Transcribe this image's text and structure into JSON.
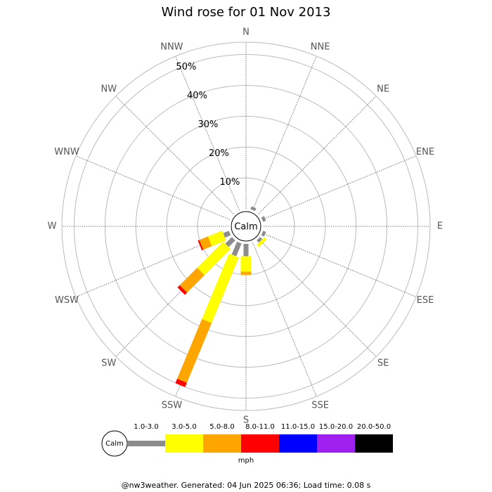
{
  "chart_data": {
    "type": "wind-rose",
    "title": "Wind rose for 01 Nov 2013",
    "directions": [
      "N",
      "NNE",
      "NE",
      "ENE",
      "E",
      "ESE",
      "SE",
      "SSE",
      "S",
      "SSW",
      "SW",
      "WSW",
      "W",
      "WNW",
      "NW",
      "NNW"
    ],
    "center_label": "Calm",
    "rlim": [
      0,
      54
    ],
    "rticks": [
      {
        "value": 10,
        "label": "10%"
      },
      {
        "value": 20,
        "label": "20%"
      },
      {
        "value": 30,
        "label": "30%"
      },
      {
        "value": 40,
        "label": "40%"
      },
      {
        "value": 50,
        "label": "50%"
      }
    ],
    "series": [
      {
        "name": "1.0-3.0",
        "color": "#8c8c8c",
        "values": [
          0,
          1,
          0,
          1,
          0,
          1,
          1,
          0,
          4,
          4.5,
          3,
          2,
          0,
          0,
          0,
          0
        ]
      },
      {
        "name": "3.0-5.0",
        "color": "#ffff00",
        "values": [
          0,
          0,
          0,
          0,
          0,
          0,
          1,
          0,
          5,
          23,
          12,
          5,
          0,
          0,
          0,
          0
        ]
      },
      {
        "name": "5.0-8.0",
        "color": "#ffa500",
        "values": [
          0,
          0,
          0,
          0,
          0,
          0,
          0,
          0,
          1,
          21,
          8,
          3,
          0,
          0,
          0,
          0
        ]
      },
      {
        "name": "8.0-11.0",
        "color": "#ff0000",
        "values": [
          0,
          0,
          0,
          0,
          0,
          0,
          0,
          0,
          0,
          1.5,
          1,
          0.5,
          0,
          0,
          0,
          0
        ]
      },
      {
        "name": "11.0-15.0",
        "color": "#0000ff",
        "values": [
          0,
          0,
          0,
          0,
          0,
          0,
          0,
          0,
          0,
          0,
          0,
          0,
          0,
          0,
          0,
          0
        ]
      },
      {
        "name": "15.0-20.0",
        "color": "#a020f0",
        "values": [
          0,
          0,
          0,
          0,
          0,
          0,
          0,
          0,
          0,
          0,
          0,
          0,
          0,
          0,
          0,
          0
        ]
      },
      {
        "name": "20.0-50.0",
        "color": "#000000",
        "values": [
          0,
          0,
          0,
          0,
          0,
          0,
          0,
          0,
          0,
          0,
          0,
          0,
          0,
          0,
          0,
          0
        ]
      }
    ],
    "legend_unit": "mph"
  },
  "footer": "@nw3weather. Generated: 04 Jun 2025 06:36; Load time: 0.08 s"
}
